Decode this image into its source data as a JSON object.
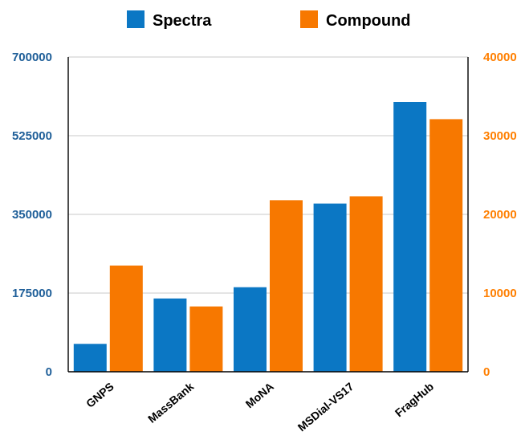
{
  "chart_data": {
    "type": "bar",
    "categories": [
      "GNPS",
      "MassBank",
      "MoNA",
      "MSDial-VS17",
      "FragHub"
    ],
    "series": [
      {
        "name": "Spectra",
        "axis": "left",
        "color": "#0b77c4",
        "values": [
          62000,
          163000,
          188000,
          374000,
          600000
        ]
      },
      {
        "name": "Compound",
        "axis": "right",
        "color": "#f77800",
        "values": [
          13500,
          8300,
          21800,
          22300,
          32100
        ]
      }
    ],
    "y_left": {
      "ylim": [
        0,
        700000
      ],
      "ticks": [
        "0",
        "175000",
        "350000",
        "525000",
        "700000"
      ],
      "color": "#1f5f99"
    },
    "y_right": {
      "ylim": [
        0,
        40000
      ],
      "ticks": [
        "0",
        "10000",
        "20000",
        "30000",
        "40000"
      ],
      "color": "#ff7f00"
    },
    "title": "",
    "xlabel": "",
    "ylabel": "",
    "grid": true,
    "legend": "top-center"
  }
}
